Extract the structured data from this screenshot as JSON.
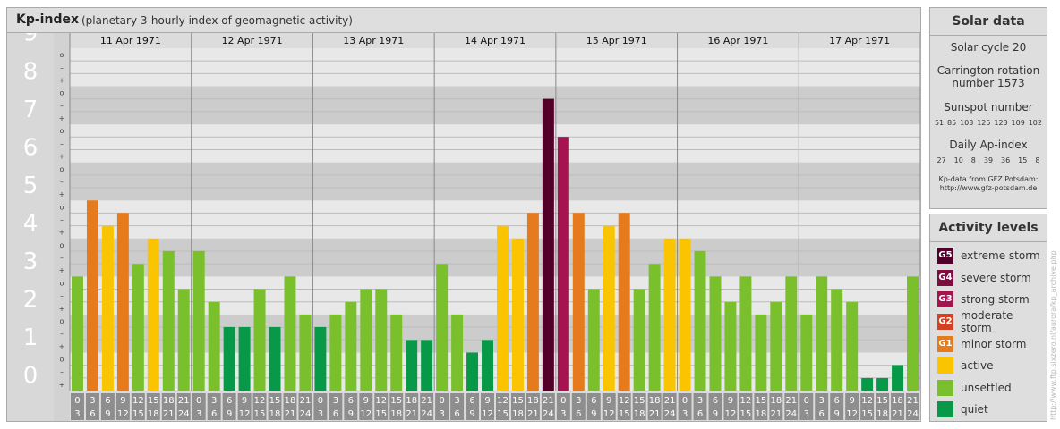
{
  "header": {
    "title": "Kp-index",
    "subtitle": "(planetary 3-hourly index of geomagnetic activity)"
  },
  "chart_data": {
    "type": "bar",
    "ylim": [
      0,
      9
    ],
    "y_tick_labels": [
      "0",
      "1",
      "2",
      "3",
      "4",
      "5",
      "6",
      "7",
      "8",
      "9"
    ],
    "sub_tick_labels": [
      "+",
      "–",
      "o"
    ],
    "days": [
      "11 Apr 1971",
      "12 Apr 1971",
      "13 Apr 1971",
      "14 Apr 1971",
      "15 Apr 1971",
      "16 Apr 1971",
      "17 Apr 1971"
    ],
    "interval_labels": [
      [
        "0",
        "3"
      ],
      [
        "3",
        "6"
      ],
      [
        "6",
        "9"
      ],
      [
        "9",
        "12"
      ],
      [
        "12",
        "15"
      ],
      [
        "15",
        "18"
      ],
      [
        "18",
        "21"
      ],
      [
        "21",
        "24"
      ]
    ],
    "values": [
      [
        3.0,
        5.0,
        4.33,
        4.67,
        3.33,
        4.0,
        3.67,
        2.67
      ],
      [
        3.67,
        2.33,
        1.67,
        1.67,
        2.67,
        1.67,
        3.0,
        2.0
      ],
      [
        1.67,
        2.0,
        2.33,
        2.67,
        2.67,
        2.0,
        1.33,
        1.33
      ],
      [
        3.33,
        2.0,
        1.0,
        1.33,
        4.33,
        4.0,
        4.67,
        7.67
      ],
      [
        6.67,
        4.67,
        2.67,
        4.33,
        4.67,
        2.67,
        3.33,
        4.0
      ],
      [
        4.0,
        3.67,
        3.0,
        2.33,
        3.0,
        2.0,
        2.33,
        3.0
      ],
      [
        2.0,
        3.0,
        2.67,
        2.33,
        0.33,
        0.33,
        0.67,
        3.0
      ]
    ],
    "level_colors": {
      "quiet": "#079947",
      "unsettled": "#79c02c",
      "active": "#fac500",
      "minor storm": "#e57b1d",
      "moderate storm": "#d14224",
      "strong storm": "#a5144e",
      "severe storm": "#7f0c40",
      "extreme storm": "#52002a"
    }
  },
  "solar": {
    "title": "Solar data",
    "cycle": "Solar cycle 20",
    "carrington_1": "Carrington rotation",
    "carrington_2": "number 1573",
    "sunspot_title": "Sunspot number",
    "sunspot_values": [
      "51",
      "85",
      "103",
      "125",
      "123",
      "109",
      "102"
    ],
    "ap_title": "Daily Ap-index",
    "ap_values": [
      "27",
      "10",
      "8",
      "39",
      "36",
      "15",
      "8"
    ],
    "credit_1": "Kp-data from GFZ Potsdam:",
    "credit_2": "http://www.gfz-potsdam.de"
  },
  "activity": {
    "title": "Activity levels",
    "levels": [
      {
        "code": "G5",
        "label": "extreme storm",
        "color": "#52002a"
      },
      {
        "code": "G4",
        "label": "severe storm",
        "color": "#7f0c40"
      },
      {
        "code": "G3",
        "label": "strong storm",
        "color": "#a5144e"
      },
      {
        "code": "G2",
        "label": "moderate storm",
        "color": "#d14224"
      },
      {
        "code": "G1",
        "label": "minor storm",
        "color": "#e57b1d"
      },
      {
        "code": "",
        "label": "active",
        "color": "#fac500"
      },
      {
        "code": "",
        "label": "unsettled",
        "color": "#79c02c"
      },
      {
        "code": "",
        "label": "quiet",
        "color": "#079947"
      }
    ]
  },
  "watermark": "http://www.ftp.sixzero.nl/aurora/kp_archive.php"
}
